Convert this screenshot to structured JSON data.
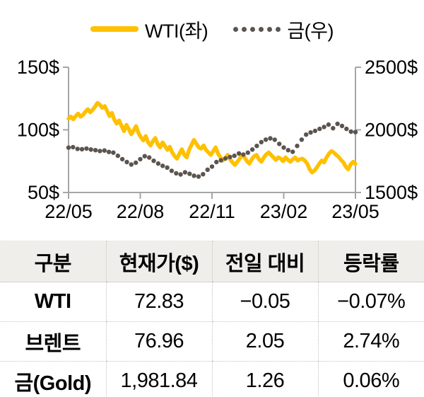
{
  "legend": {
    "wti_label": "WTI(좌)",
    "gold_label": "금(우)"
  },
  "colors": {
    "wti_line": "#FFC000",
    "gold_dot": "#5B544F",
    "axis": "#A6A6A6",
    "text": "#000000",
    "table_header_bg": "#F0EEEA"
  },
  "chart_data": {
    "type": "line",
    "title": "",
    "x_tick_labels": [
      "22/05",
      "22/08",
      "22/11",
      "23/02",
      "23/05"
    ],
    "left_axis": {
      "tick_labels": [
        "150$",
        "100$",
        "50$"
      ],
      "min": 50,
      "max": 150,
      "unit": "$"
    },
    "right_axis": {
      "tick_labels": [
        "2500$",
        "2000$",
        "1500$"
      ],
      "min": 1500,
      "max": 2500,
      "unit": "$"
    },
    "grid": false,
    "legend_position": "top",
    "series": [
      {
        "name": "WTI(좌)",
        "axis": "left",
        "style": "line",
        "color": "#FFC000",
        "values": [
          109,
          110.5,
          108.5,
          111,
          113,
          110.5,
          112,
          114.5,
          116.5,
          114,
          116,
          118.5,
          121.5,
          120,
          117.5,
          119,
          115,
          111,
          113.5,
          108,
          105,
          107.5,
          103,
          99,
          104,
          100.5,
          96.5,
          99.5,
          103,
          97.5,
          94,
          91.5,
          95,
          90,
          87.5,
          91,
          93.5,
          88.5,
          86,
          90,
          87,
          84,
          86.5,
          82,
          79,
          77,
          81,
          84.5,
          80,
          78,
          84,
          88,
          92,
          89,
          86,
          85,
          87.5,
          84,
          82,
          80,
          83,
          86,
          81,
          78,
          75.5,
          77.5,
          80,
          76.5,
          74,
          72,
          74.5,
          77,
          80,
          78,
          75,
          73,
          76.5,
          79,
          80,
          76.5,
          74.5,
          78,
          80.5,
          82,
          80,
          78,
          76,
          78,
          77,
          75,
          78,
          76,
          74.5,
          76.5,
          78,
          75.5,
          76.5,
          77,
          75.5,
          73,
          68.5,
          66,
          67.5,
          70,
          73,
          75.5,
          74,
          78,
          81,
          83,
          82,
          80,
          78.5,
          76,
          74,
          70.5,
          68.5,
          72.5,
          74.5,
          72.8
        ]
      },
      {
        "name": "금(우)",
        "axis": "right",
        "style": "dotted",
        "color": "#5B544F",
        "values": [
          1858,
          1862,
          1848,
          1846,
          1851,
          1843,
          1838,
          1831,
          1835,
          1824,
          1818,
          1793,
          1766,
          1743,
          1723,
          1738,
          1766,
          1790,
          1779,
          1753,
          1731,
          1713,
          1699,
          1673,
          1653,
          1644,
          1661,
          1649,
          1634,
          1627,
          1646,
          1682,
          1707,
          1743,
          1757,
          1772,
          1783,
          1793,
          1812,
          1803,
          1818,
          1843,
          1872,
          1902,
          1922,
          1932,
          1921,
          1888,
          1859,
          1838,
          1825,
          1872,
          1922,
          1962,
          1979,
          1992,
          2008,
          2023,
          2042,
          2013,
          2048,
          2031,
          2008,
          1986,
          1982
        ]
      }
    ]
  },
  "table": {
    "headers": [
      "구분",
      "현재가($)",
      "전일 대비",
      "등락률"
    ],
    "rows": [
      [
        "WTI",
        "72.83",
        "−0.05",
        "−0.07%"
      ],
      [
        "브렌트",
        "76.96",
        "2.05",
        "2.74%"
      ],
      [
        "금(Gold)",
        "1,981.84",
        "1.26",
        "0.06%"
      ]
    ]
  }
}
